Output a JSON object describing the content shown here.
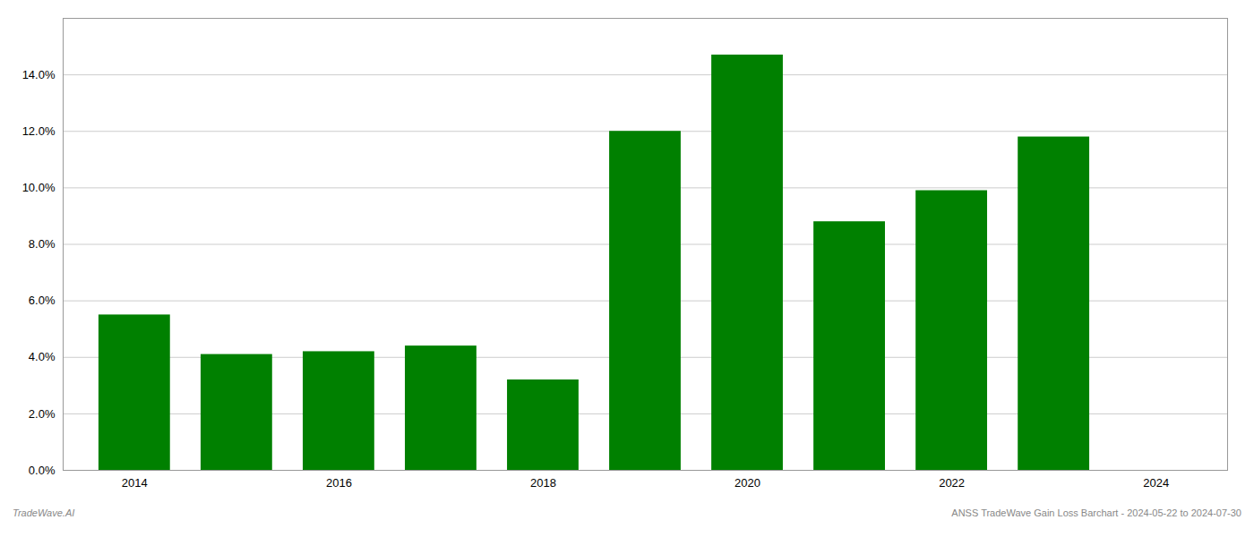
{
  "chart_data": {
    "type": "bar",
    "x": [
      2014,
      2015,
      2016,
      2017,
      2018,
      2019,
      2020,
      2021,
      2022,
      2023
    ],
    "values": [
      0.055,
      0.041,
      0.042,
      0.044,
      0.032,
      0.12,
      0.147,
      0.088,
      0.099,
      0.118
    ],
    "color": "#008000",
    "xlim": [
      2013.3,
      2024.7
    ],
    "xticks": [
      2014,
      2016,
      2018,
      2020,
      2022,
      2024
    ],
    "ylim": [
      0,
      0.16
    ],
    "yticks": [
      {
        "value": 0.0,
        "label": "0.0%"
      },
      {
        "value": 0.02,
        "label": "2.0%"
      },
      {
        "value": 0.04,
        "label": "4.0%"
      },
      {
        "value": 0.06,
        "label": "6.0%"
      },
      {
        "value": 0.08,
        "label": "8.0%"
      },
      {
        "value": 0.1,
        "label": "10.0%"
      },
      {
        "value": 0.12,
        "label": "12.0%"
      },
      {
        "value": 0.14,
        "label": "14.0%"
      }
    ],
    "grid": true,
    "annotations": [
      "TradeWave.AI",
      "ANSS TradeWave Gain Loss Barchart - 2024-05-22 to 2024-07-30"
    ]
  }
}
